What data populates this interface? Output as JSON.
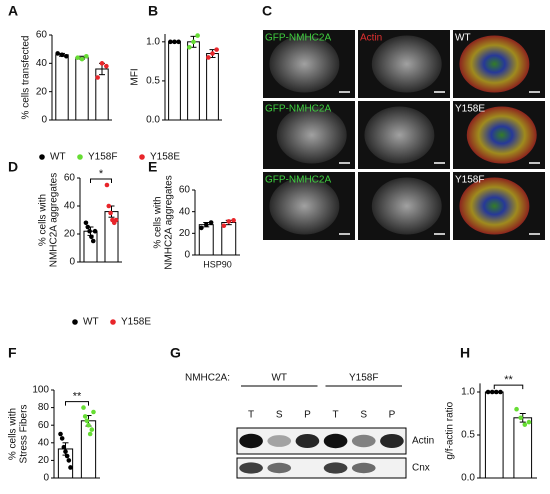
{
  "panels": [
    "A",
    "B",
    "C",
    "D",
    "E",
    "F",
    "G",
    "H"
  ],
  "chart_data": [
    {
      "type": "bar",
      "ylabel": "% cells transfected",
      "categories": [
        null,
        null,
        null
      ],
      "values": [
        46,
        44,
        36
      ],
      "errors": [
        1,
        1,
        4
      ],
      "points": [
        [
          47,
          46,
          45
        ],
        [
          44,
          43,
          45
        ],
        [
          30,
          40,
          38
        ]
      ],
      "colors": [
        "#000000",
        "#66dd33",
        "#e8252a"
      ],
      "ylim": [
        0,
        60
      ],
      "yticks": [
        0,
        20,
        40,
        60
      ]
    },
    {
      "type": "bar",
      "ylabel": "MFI",
      "categories": [
        null,
        null,
        null
      ],
      "values": [
        1.0,
        1.0,
        0.85
      ],
      "errors": [
        0.01,
        0.07,
        0.05
      ],
      "points": [
        [
          1.0,
          1.0,
          1.0
        ],
        [
          0.93,
          1.0,
          1.08
        ],
        [
          0.8,
          0.85,
          0.9
        ]
      ],
      "colors": [
        "#000000",
        "#66dd33",
        "#e8252a"
      ],
      "ylim": [
        0,
        1.1
      ],
      "yticks": [
        {
          "value": 0,
          "label": "0.0"
        },
        0.5,
        {
          "value": 1,
          "label": "1.0"
        }
      ]
    },
    {
      "type": "bar",
      "ylabel": [
        "% cells with",
        "NMHC2A aggregates"
      ],
      "categories": [
        null,
        null
      ],
      "values": [
        22,
        36
      ],
      "errors": [
        3,
        4
      ],
      "points": [
        [
          28,
          25,
          22,
          18,
          15,
          22
        ],
        [
          55,
          40,
          35,
          30,
          28,
          30
        ]
      ],
      "colors": [
        "#000000",
        "#e8252a"
      ],
      "annotation": "*",
      "ylim": [
        0,
        60
      ],
      "yticks": [
        0,
        20,
        40,
        60
      ]
    },
    {
      "type": "bar",
      "ylabel": [
        "% cells with",
        "NMHC2A aggregates"
      ],
      "categories": [
        null,
        null
      ],
      "xlabel": "HSP90",
      "values": [
        28,
        30
      ],
      "errors": [
        2,
        2
      ],
      "points": [
        [
          25,
          28,
          30
        ],
        [
          27,
          31,
          32
        ]
      ],
      "colors": [
        "#000000",
        "#e8252a"
      ],
      "ylim": [
        0,
        60
      ],
      "yticks": [
        0,
        20,
        40,
        60
      ]
    },
    {
      "type": "bar",
      "ylabel": [
        "% cells with",
        "Stress Fibers"
      ],
      "categories": [
        null,
        null
      ],
      "values": [
        33,
        65
      ],
      "errors": [
        7,
        6
      ],
      "points": [
        [
          50,
          45,
          35,
          30,
          25,
          20,
          12
        ],
        [
          80,
          70,
          65,
          60,
          50,
          55,
          75
        ]
      ],
      "colors": [
        "#000000",
        "#66dd33"
      ],
      "annotation": "**",
      "ylim": [
        0,
        100
      ],
      "yticks": [
        0,
        20,
        40,
        60,
        80,
        100
      ]
    },
    {
      "type": "bar",
      "ylabel": "g/f-actin ratio",
      "categories": [
        null,
        null
      ],
      "values": [
        1.0,
        0.7
      ],
      "errors": [
        0.01,
        0.05
      ],
      "points": [
        [
          1.0,
          1.0,
          1.0,
          1.0
        ],
        [
          0.8,
          0.7,
          0.62,
          0.65
        ]
      ],
      "colors": [
        "#000000",
        "#66dd33"
      ],
      "annotation": "**",
      "ylim": [
        0,
        1.1
      ],
      "yticks": [
        {
          "value": 0,
          "label": "0.0"
        },
        0.5,
        {
          "value": 1,
          "label": "1.0"
        }
      ]
    }
  ],
  "legends": [
    [
      {
        "name": "WT",
        "color": "#000000"
      },
      {
        "name": "Y158F",
        "color": "#66dd33"
      },
      {
        "name": "Y158E",
        "color": "#e8252a"
      }
    ],
    [
      {
        "name": "WT",
        "color": "#000000"
      },
      {
        "name": "Y158E",
        "color": "#e8252a"
      }
    ]
  ],
  "images": [
    {
      "channel": "GFP-NMHC2A",
      "actin": "Actin",
      "genotype": "WT"
    },
    {
      "channel": "GFP-NMHC2A",
      "genotype": "Y158E"
    },
    {
      "channel": "GFP-NMHC2A",
      "genotype": "Y158F"
    }
  ],
  "blot": {
    "row_label": "NMHC2A:",
    "groups": [
      "WT",
      "Y158F"
    ],
    "lanes": [
      "T",
      "S",
      "P",
      "T",
      "S",
      "P"
    ],
    "bands": [
      "Actin",
      "Cnx"
    ]
  }
}
